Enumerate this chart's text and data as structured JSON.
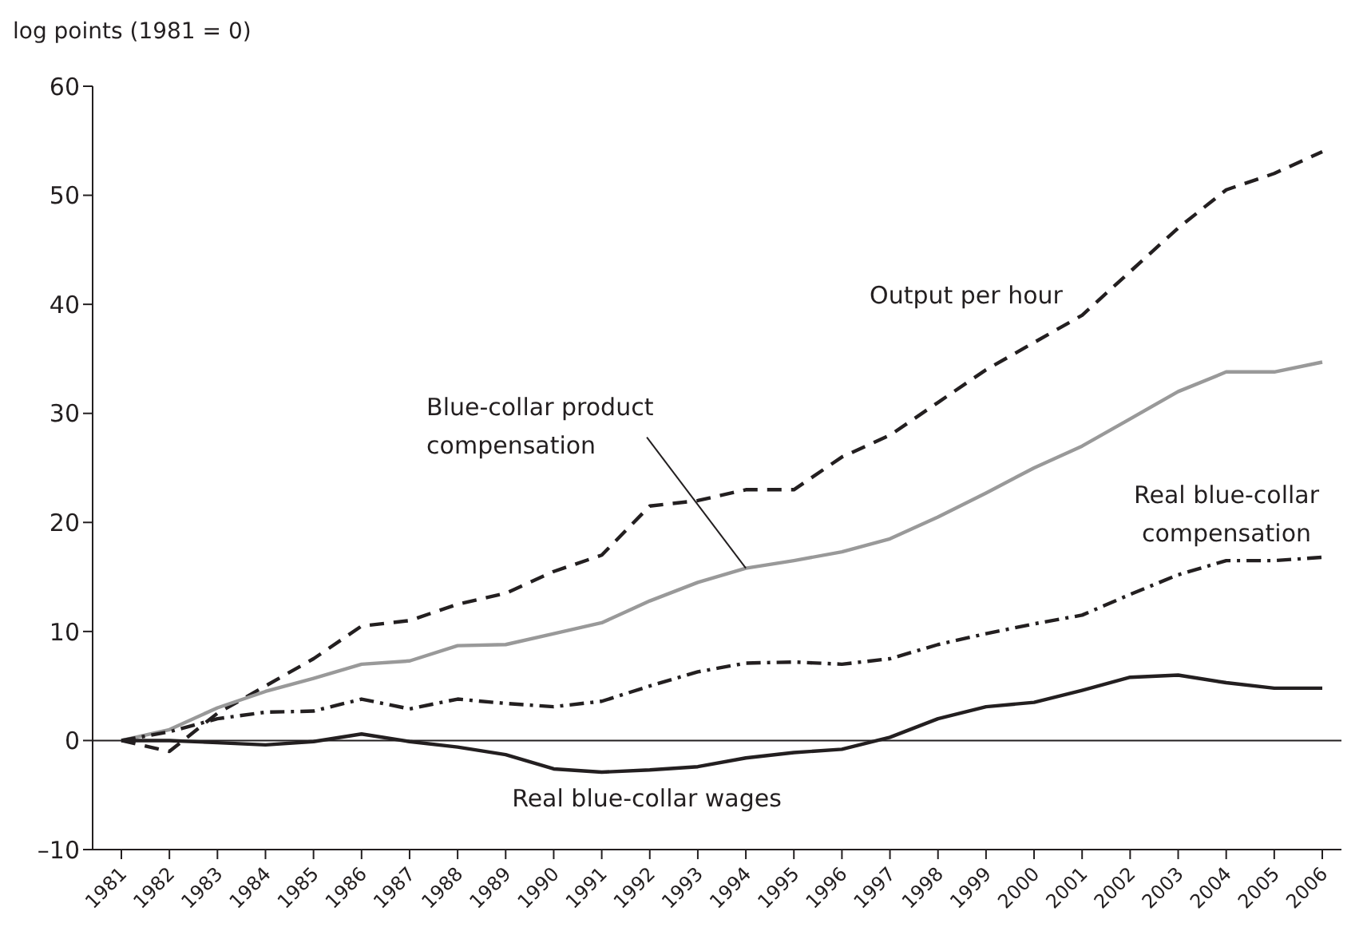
{
  "chart_data": {
    "type": "line",
    "ylabel": "log points (1981 = 0)",
    "categories": [
      "1981",
      "1982",
      "1983",
      "1984",
      "1985",
      "1986",
      "1987",
      "1988",
      "1989",
      "1990",
      "1991",
      "1992",
      "1993",
      "1994",
      "1995",
      "1996",
      "1997",
      "1998",
      "1999",
      "2000",
      "2001",
      "2002",
      "2003",
      "2004",
      "2005",
      "2006"
    ],
    "series": [
      {
        "color": "#231f20",
        "line_style": "dashed",
        "values": [
          0,
          -1,
          2.5,
          5,
          7.5,
          10.5,
          11,
          12.5,
          13.5,
          15.5,
          17,
          21.5,
          22,
          23,
          23,
          26,
          28,
          31,
          34,
          36.5,
          39,
          43,
          47,
          50.5,
          52,
          54
        ]
      },
      {
        "color": "#999999",
        "line_style": "solid",
        "values": [
          0,
          1,
          3,
          4.5,
          5.7,
          7,
          7.3,
          8.7,
          8.8,
          9.8,
          10.8,
          12.8,
          14.5,
          15.8,
          16.5,
          17.3,
          18.5,
          20.5,
          22.7,
          25,
          27,
          29.5,
          32,
          33.8,
          33.8,
          34.7
        ]
      },
      {
        "color": "#231f20",
        "line_style": "dashdot",
        "values": [
          0,
          0.8,
          2,
          2.6,
          2.7,
          3.8,
          2.9,
          3.8,
          3.4,
          3.1,
          3.6,
          5,
          6.3,
          7.1,
          7.2,
          7,
          7.5,
          8.8,
          9.8,
          10.7,
          11.5,
          13.4,
          15.2,
          16.5,
          16.5,
          16.8
        ]
      },
      {
        "color": "#231f20",
        "line_style": "solid",
        "values": [
          0,
          0,
          -0.2,
          -0.4,
          -0.1,
          0.6,
          -0.1,
          -0.6,
          -1.3,
          -2.6,
          -2.9,
          -2.7,
          -2.4,
          -1.6,
          -1.1,
          -0.8,
          0.3,
          2,
          3.1,
          3.5,
          4.6,
          5.8,
          6,
          5.3,
          4.8,
          4.8
        ]
      }
    ],
    "ylim": [
      -10,
      60
    ],
    "yticks": [
      {
        "value": -10,
        "label": "–10"
      },
      0,
      10,
      20,
      30,
      40,
      50,
      60
    ],
    "ref_lines": [
      {
        "axis": "y",
        "value": 0,
        "color": "#231f20"
      }
    ],
    "annotations": [
      "Output per hour",
      {
        "text": "Blue-collar product compensation",
        "x": "1994",
        "y": 15.8
      },
      "Real blue-collar compensation",
      "Real blue-collar wages"
    ],
    "grid": false,
    "legend": false,
    "marker": "none"
  }
}
